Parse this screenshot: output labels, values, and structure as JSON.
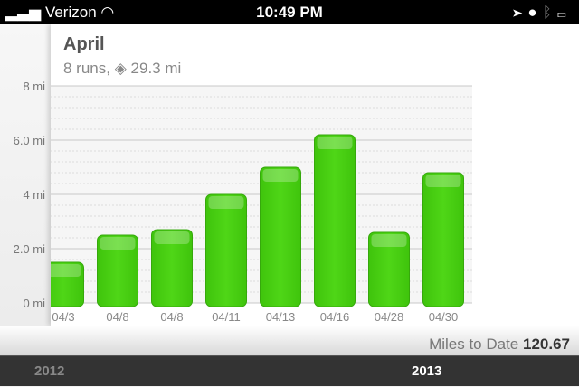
{
  "status_bar": {
    "carrier": "Verizon",
    "time": "10:49 PM",
    "icons": [
      "signal-icon",
      "wifi-icon",
      "location-icon",
      "clock-icon",
      "bluetooth-icon",
      "battery-icon"
    ]
  },
  "header": {
    "title": "April",
    "runs": "8 runs,",
    "distance": "29.3 mi"
  },
  "chart_data": {
    "type": "bar",
    "categories": [
      "04/3",
      "04/8",
      "04/8",
      "04/11",
      "04/13",
      "04/16",
      "04/28",
      "04/30"
    ],
    "values": [
      1.5,
      2.5,
      2.7,
      4.0,
      5.0,
      6.2,
      2.6,
      4.8
    ],
    "ylim": [
      0,
      8
    ],
    "yticks": [
      0,
      2,
      4,
      6,
      8
    ],
    "ytick_labels": [
      "0 mi",
      "2.0 mi",
      "4 mi",
      "6.0 mi",
      "8 mi"
    ],
    "grid": true,
    "bar_color": "#4fd617"
  },
  "footer": {
    "label": "Miles to Date",
    "value": "120.67"
  },
  "tabs": [
    {
      "label": "2012",
      "active": false
    },
    {
      "label": "2013",
      "active": true
    }
  ]
}
